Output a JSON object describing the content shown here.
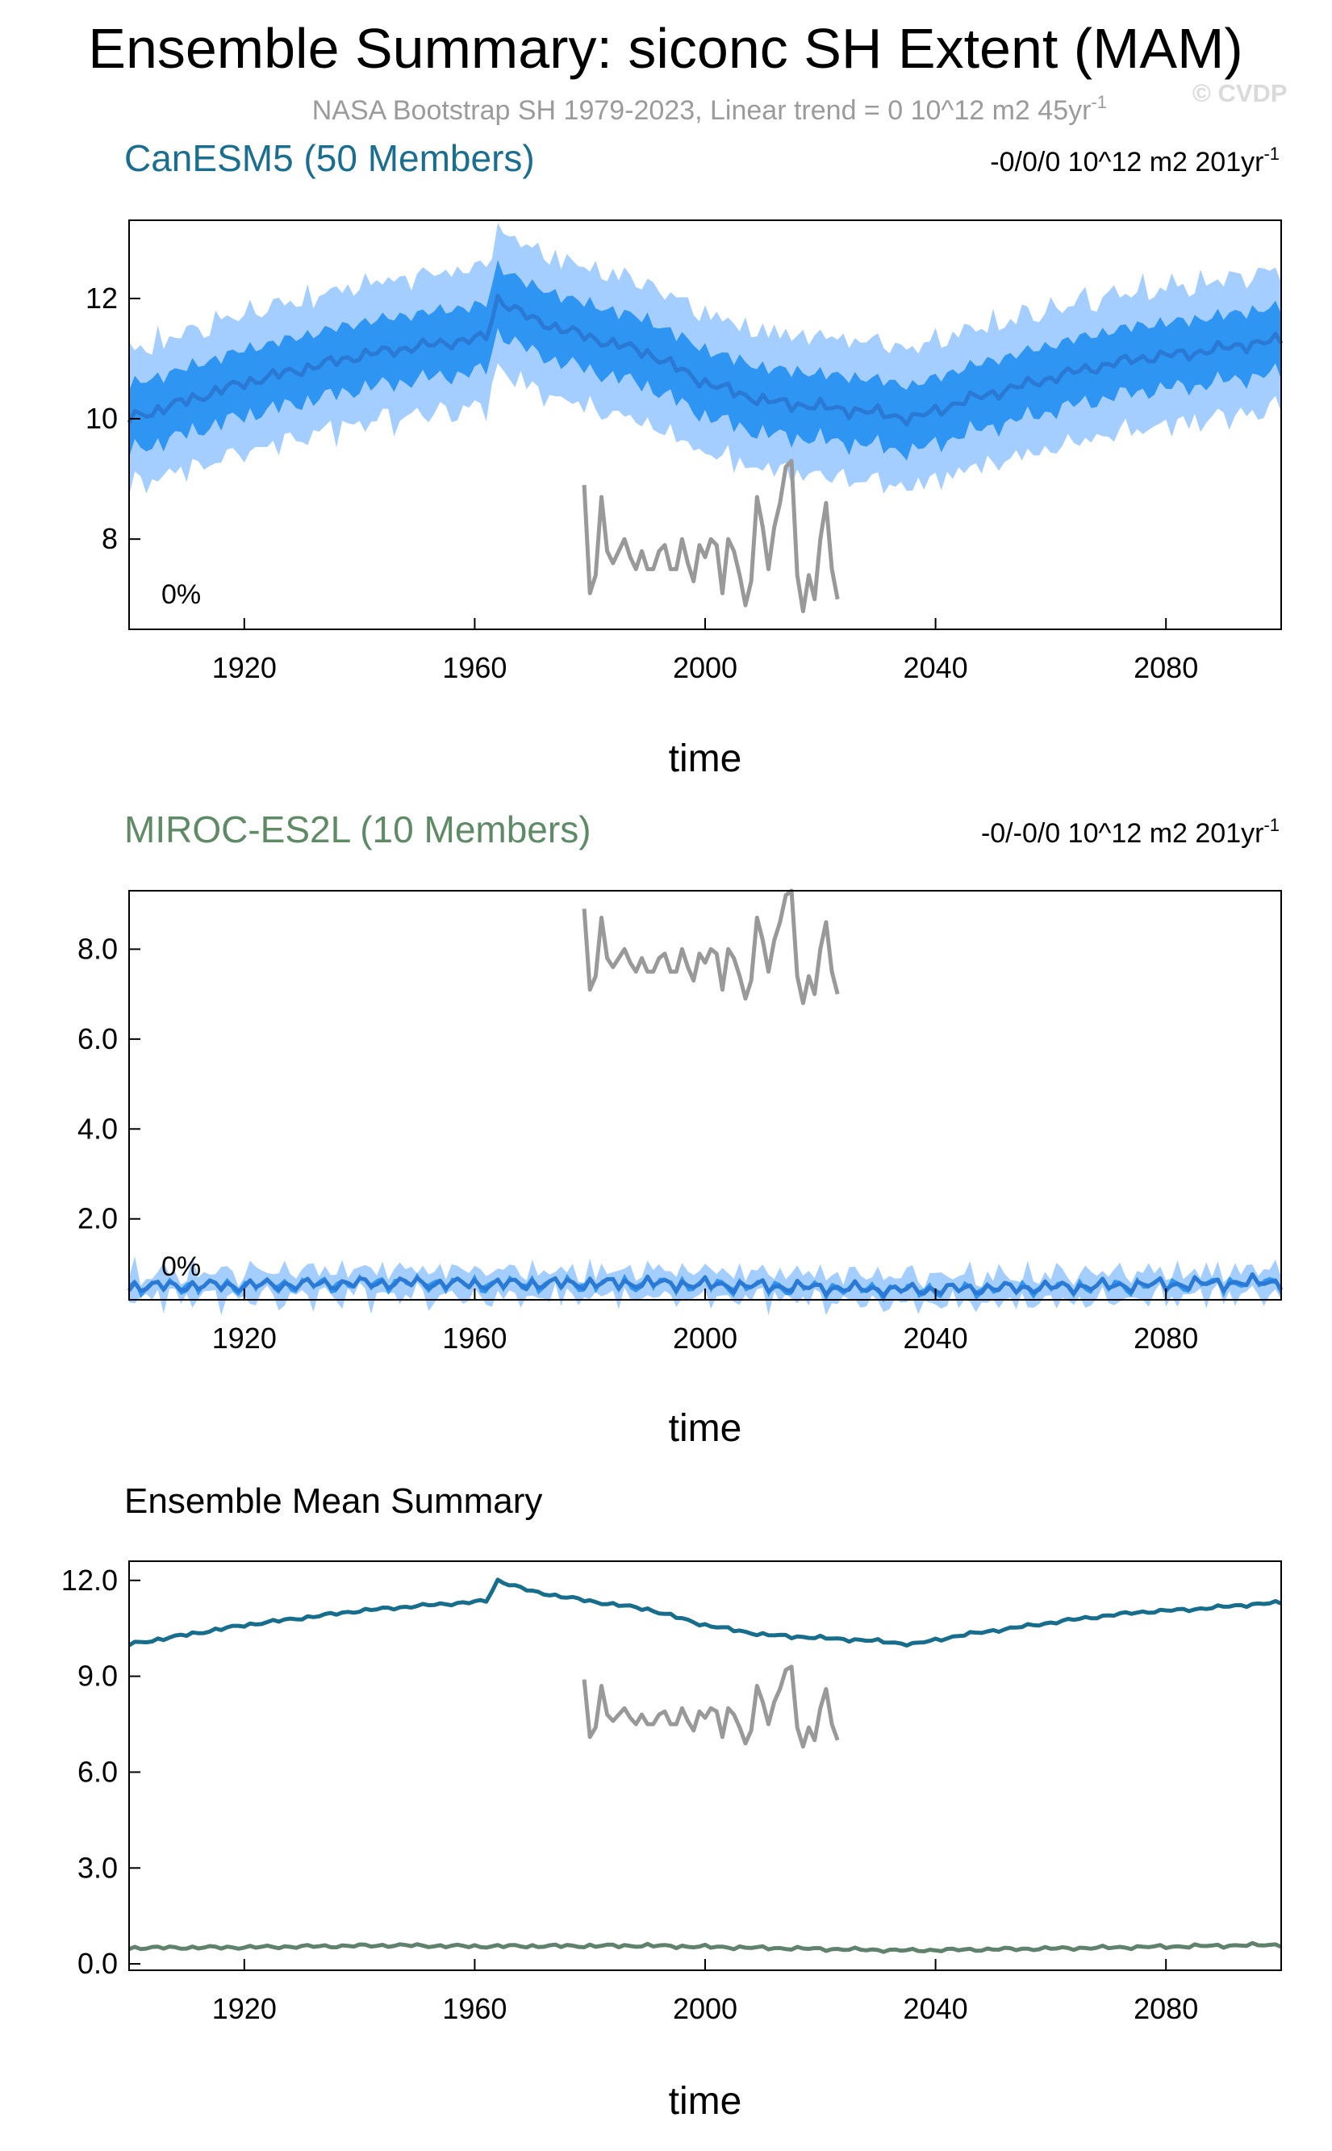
{
  "figure": {
    "title": "Ensemble Summary: siconc SH Extent (MAM)",
    "subtitle": "NASA Bootstrap SH 1979-2023, Linear trend = 0 10^12 m2 45yr",
    "subtitle_sup": "-1",
    "watermark": "© CVDP"
  },
  "colors": {
    "panel1_label": "#1a6e90",
    "panel2_label": "#5f8a66",
    "outer_band": "#a4ceff",
    "inner_band": "#2f95f2",
    "ens_mean": "#2a79d4",
    "obs": "#999999",
    "mean_canesm5": "#166d8c",
    "mean_miroc": "#5f826c",
    "axis": "#000000",
    "subtitle": "#9b9b9b"
  },
  "chart_data": [
    {
      "type": "area",
      "panel_label": "CanESM5 (50 Members)",
      "trend_text": "-0/0/0 10^12 m2 201yr",
      "trend_sup": "-1",
      "percent_label": "0%",
      "xlabel": "time",
      "ylabel": "",
      "xlim": [
        1900,
        2100
      ],
      "ylim": [
        6.5,
        13.3
      ],
      "yticks": [
        8,
        10,
        12
      ],
      "ytick_labels": [
        "8",
        "10",
        "12"
      ],
      "xticks": [
        1920,
        1960,
        2000,
        2040,
        2080
      ],
      "xtick_labels": [
        "1920",
        "1960",
        "2000",
        "2040",
        "2080"
      ],
      "ensemble_mean_keyframes": [
        [
          1900,
          10.0
        ],
        [
          1910,
          10.3
        ],
        [
          1920,
          10.6
        ],
        [
          1940,
          11.05
        ],
        [
          1950,
          11.2
        ],
        [
          1962,
          11.35
        ],
        [
          1964,
          12.0
        ],
        [
          1970,
          11.65
        ],
        [
          1980,
          11.35
        ],
        [
          1990,
          11.1
        ],
        [
          2000,
          10.6
        ],
        [
          2010,
          10.3
        ],
        [
          2020,
          10.2
        ],
        [
          2030,
          10.1
        ],
        [
          2036,
          10.0
        ],
        [
          2045,
          10.3
        ],
        [
          2055,
          10.55
        ],
        [
          2065,
          10.8
        ],
        [
          2075,
          11.0
        ],
        [
          2085,
          11.1
        ],
        [
          2095,
          11.25
        ],
        [
          2100,
          11.3
        ]
      ],
      "inner_band_halfwidth": 0.55,
      "outer_band_halfwidth": 1.0,
      "obs_label": "NASA Bootstrap SH 1979-2023",
      "obs_years": [
        1979,
        1980,
        1981,
        1982,
        1983,
        1984,
        1985,
        1986,
        1987,
        1988,
        1989,
        1990,
        1991,
        1992,
        1993,
        1994,
        1995,
        1996,
        1997,
        1998,
        1999,
        2000,
        2001,
        2002,
        2003,
        2004,
        2005,
        2006,
        2007,
        2008,
        2009,
        2010,
        2011,
        2012,
        2013,
        2014,
        2015,
        2016,
        2017,
        2018,
        2019,
        2020,
        2021,
        2022,
        2023
      ],
      "obs_values": [
        8.9,
        7.1,
        7.4,
        8.7,
        7.8,
        7.6,
        7.8,
        8.0,
        7.7,
        7.5,
        7.8,
        7.5,
        7.5,
        7.8,
        7.9,
        7.5,
        7.5,
        8.0,
        7.6,
        7.3,
        7.9,
        7.7,
        8.0,
        7.9,
        7.1,
        8.0,
        7.8,
        7.4,
        6.9,
        7.3,
        8.7,
        8.2,
        7.5,
        8.2,
        8.6,
        9.2,
        9.3,
        7.4,
        6.8,
        7.4,
        7.0,
        8.0,
        8.6,
        7.5,
        7.0
      ]
    },
    {
      "type": "area",
      "panel_label": "MIROC-ES2L (10 Members)",
      "trend_text": "-0/-0/0 10^12 m2 201yr",
      "trend_sup": "-1",
      "percent_label": "0%",
      "xlabel": "time",
      "ylabel": "",
      "xlim": [
        1900,
        2100
      ],
      "ylim": [
        0.2,
        9.3
      ],
      "yticks": [
        2.0,
        4.0,
        6.0,
        8.0
      ],
      "ytick_labels": [
        "2.0",
        "4.0",
        "6.0",
        "8.0"
      ],
      "xticks": [
        1920,
        1960,
        2000,
        2040,
        2080
      ],
      "xtick_labels": [
        "1920",
        "1960",
        "2000",
        "2040",
        "2080"
      ],
      "ensemble_mean_keyframes": [
        [
          1900,
          0.5
        ],
        [
          1920,
          0.52
        ],
        [
          1946,
          0.58
        ],
        [
          1960,
          0.55
        ],
        [
          1990,
          0.57
        ],
        [
          2010,
          0.5
        ],
        [
          2035,
          0.42
        ],
        [
          2060,
          0.48
        ],
        [
          2100,
          0.6
        ]
      ],
      "inner_band_halfwidth": 0.05,
      "outer_band_halfwidth": 0.09,
      "obs_label": "NASA Bootstrap SH 1979-2023",
      "obs_years": [
        1979,
        1980,
        1981,
        1982,
        1983,
        1984,
        1985,
        1986,
        1987,
        1988,
        1989,
        1990,
        1991,
        1992,
        1993,
        1994,
        1995,
        1996,
        1997,
        1998,
        1999,
        2000,
        2001,
        2002,
        2003,
        2004,
        2005,
        2006,
        2007,
        2008,
        2009,
        2010,
        2011,
        2012,
        2013,
        2014,
        2015,
        2016,
        2017,
        2018,
        2019,
        2020,
        2021,
        2022,
        2023
      ],
      "obs_values": [
        8.9,
        7.1,
        7.4,
        8.7,
        7.8,
        7.6,
        7.8,
        8.0,
        7.7,
        7.5,
        7.8,
        7.5,
        7.5,
        7.8,
        7.9,
        7.5,
        7.5,
        8.0,
        7.6,
        7.3,
        7.9,
        7.7,
        8.0,
        7.9,
        7.1,
        8.0,
        7.8,
        7.4,
        6.9,
        7.3,
        8.7,
        8.2,
        7.5,
        8.2,
        8.6,
        9.2,
        9.3,
        7.4,
        6.8,
        7.4,
        7.0,
        8.0,
        8.6,
        7.5,
        7.0
      ]
    },
    {
      "type": "line",
      "panel_label": "Ensemble Mean Summary",
      "xlabel": "time",
      "ylabel": "",
      "xlim": [
        1900,
        2100
      ],
      "ylim": [
        -0.2,
        12.6
      ],
      "yticks": [
        0.0,
        3.0,
        6.0,
        9.0,
        12.0
      ],
      "ytick_labels": [
        "0.0",
        "3.0",
        "6.0",
        "9.0",
        "12.0"
      ],
      "xticks": [
        1920,
        1960,
        2000,
        2040,
        2080
      ],
      "xtick_labels": [
        "1920",
        "1960",
        "2000",
        "2040",
        "2080"
      ],
      "series": [
        {
          "name": "CanESM5",
          "color": "#166d8c",
          "keyframes": [
            [
              1900,
              10.0
            ],
            [
              1910,
              10.3
            ],
            [
              1920,
              10.6
            ],
            [
              1940,
              11.05
            ],
            [
              1950,
              11.2
            ],
            [
              1962,
              11.35
            ],
            [
              1964,
              12.0
            ],
            [
              1970,
              11.65
            ],
            [
              1980,
              11.35
            ],
            [
              1990,
              11.1
            ],
            [
              2000,
              10.6
            ],
            [
              2010,
              10.3
            ],
            [
              2020,
              10.2
            ],
            [
              2030,
              10.1
            ],
            [
              2036,
              10.0
            ],
            [
              2045,
              10.3
            ],
            [
              2055,
              10.55
            ],
            [
              2065,
              10.8
            ],
            [
              2075,
              11.0
            ],
            [
              2085,
              11.1
            ],
            [
              2095,
              11.25
            ],
            [
              2100,
              11.3
            ]
          ]
        },
        {
          "name": "MIROC-ES2L",
          "color": "#5f826c",
          "keyframes": [
            [
              1900,
              0.5
            ],
            [
              1920,
              0.52
            ],
            [
              1946,
              0.58
            ],
            [
              1960,
              0.55
            ],
            [
              1990,
              0.57
            ],
            [
              2010,
              0.5
            ],
            [
              2035,
              0.42
            ],
            [
              2060,
              0.48
            ],
            [
              2100,
              0.6
            ]
          ]
        }
      ],
      "obs_label": "NASA Bootstrap SH 1979-2023",
      "obs_years": [
        1979,
        1980,
        1981,
        1982,
        1983,
        1984,
        1985,
        1986,
        1987,
        1988,
        1989,
        1990,
        1991,
        1992,
        1993,
        1994,
        1995,
        1996,
        1997,
        1998,
        1999,
        2000,
        2001,
        2002,
        2003,
        2004,
        2005,
        2006,
        2007,
        2008,
        2009,
        2010,
        2011,
        2012,
        2013,
        2014,
        2015,
        2016,
        2017,
        2018,
        2019,
        2020,
        2021,
        2022,
        2023
      ],
      "obs_values": [
        8.9,
        7.1,
        7.4,
        8.7,
        7.8,
        7.6,
        7.8,
        8.0,
        7.7,
        7.5,
        7.8,
        7.5,
        7.5,
        7.8,
        7.9,
        7.5,
        7.5,
        8.0,
        7.6,
        7.3,
        7.9,
        7.7,
        8.0,
        7.9,
        7.1,
        8.0,
        7.8,
        7.4,
        6.9,
        7.3,
        8.7,
        8.2,
        7.5,
        8.2,
        8.6,
        9.2,
        9.3,
        7.4,
        6.8,
        7.4,
        7.0,
        8.0,
        8.6,
        7.5,
        7.0
      ]
    }
  ]
}
